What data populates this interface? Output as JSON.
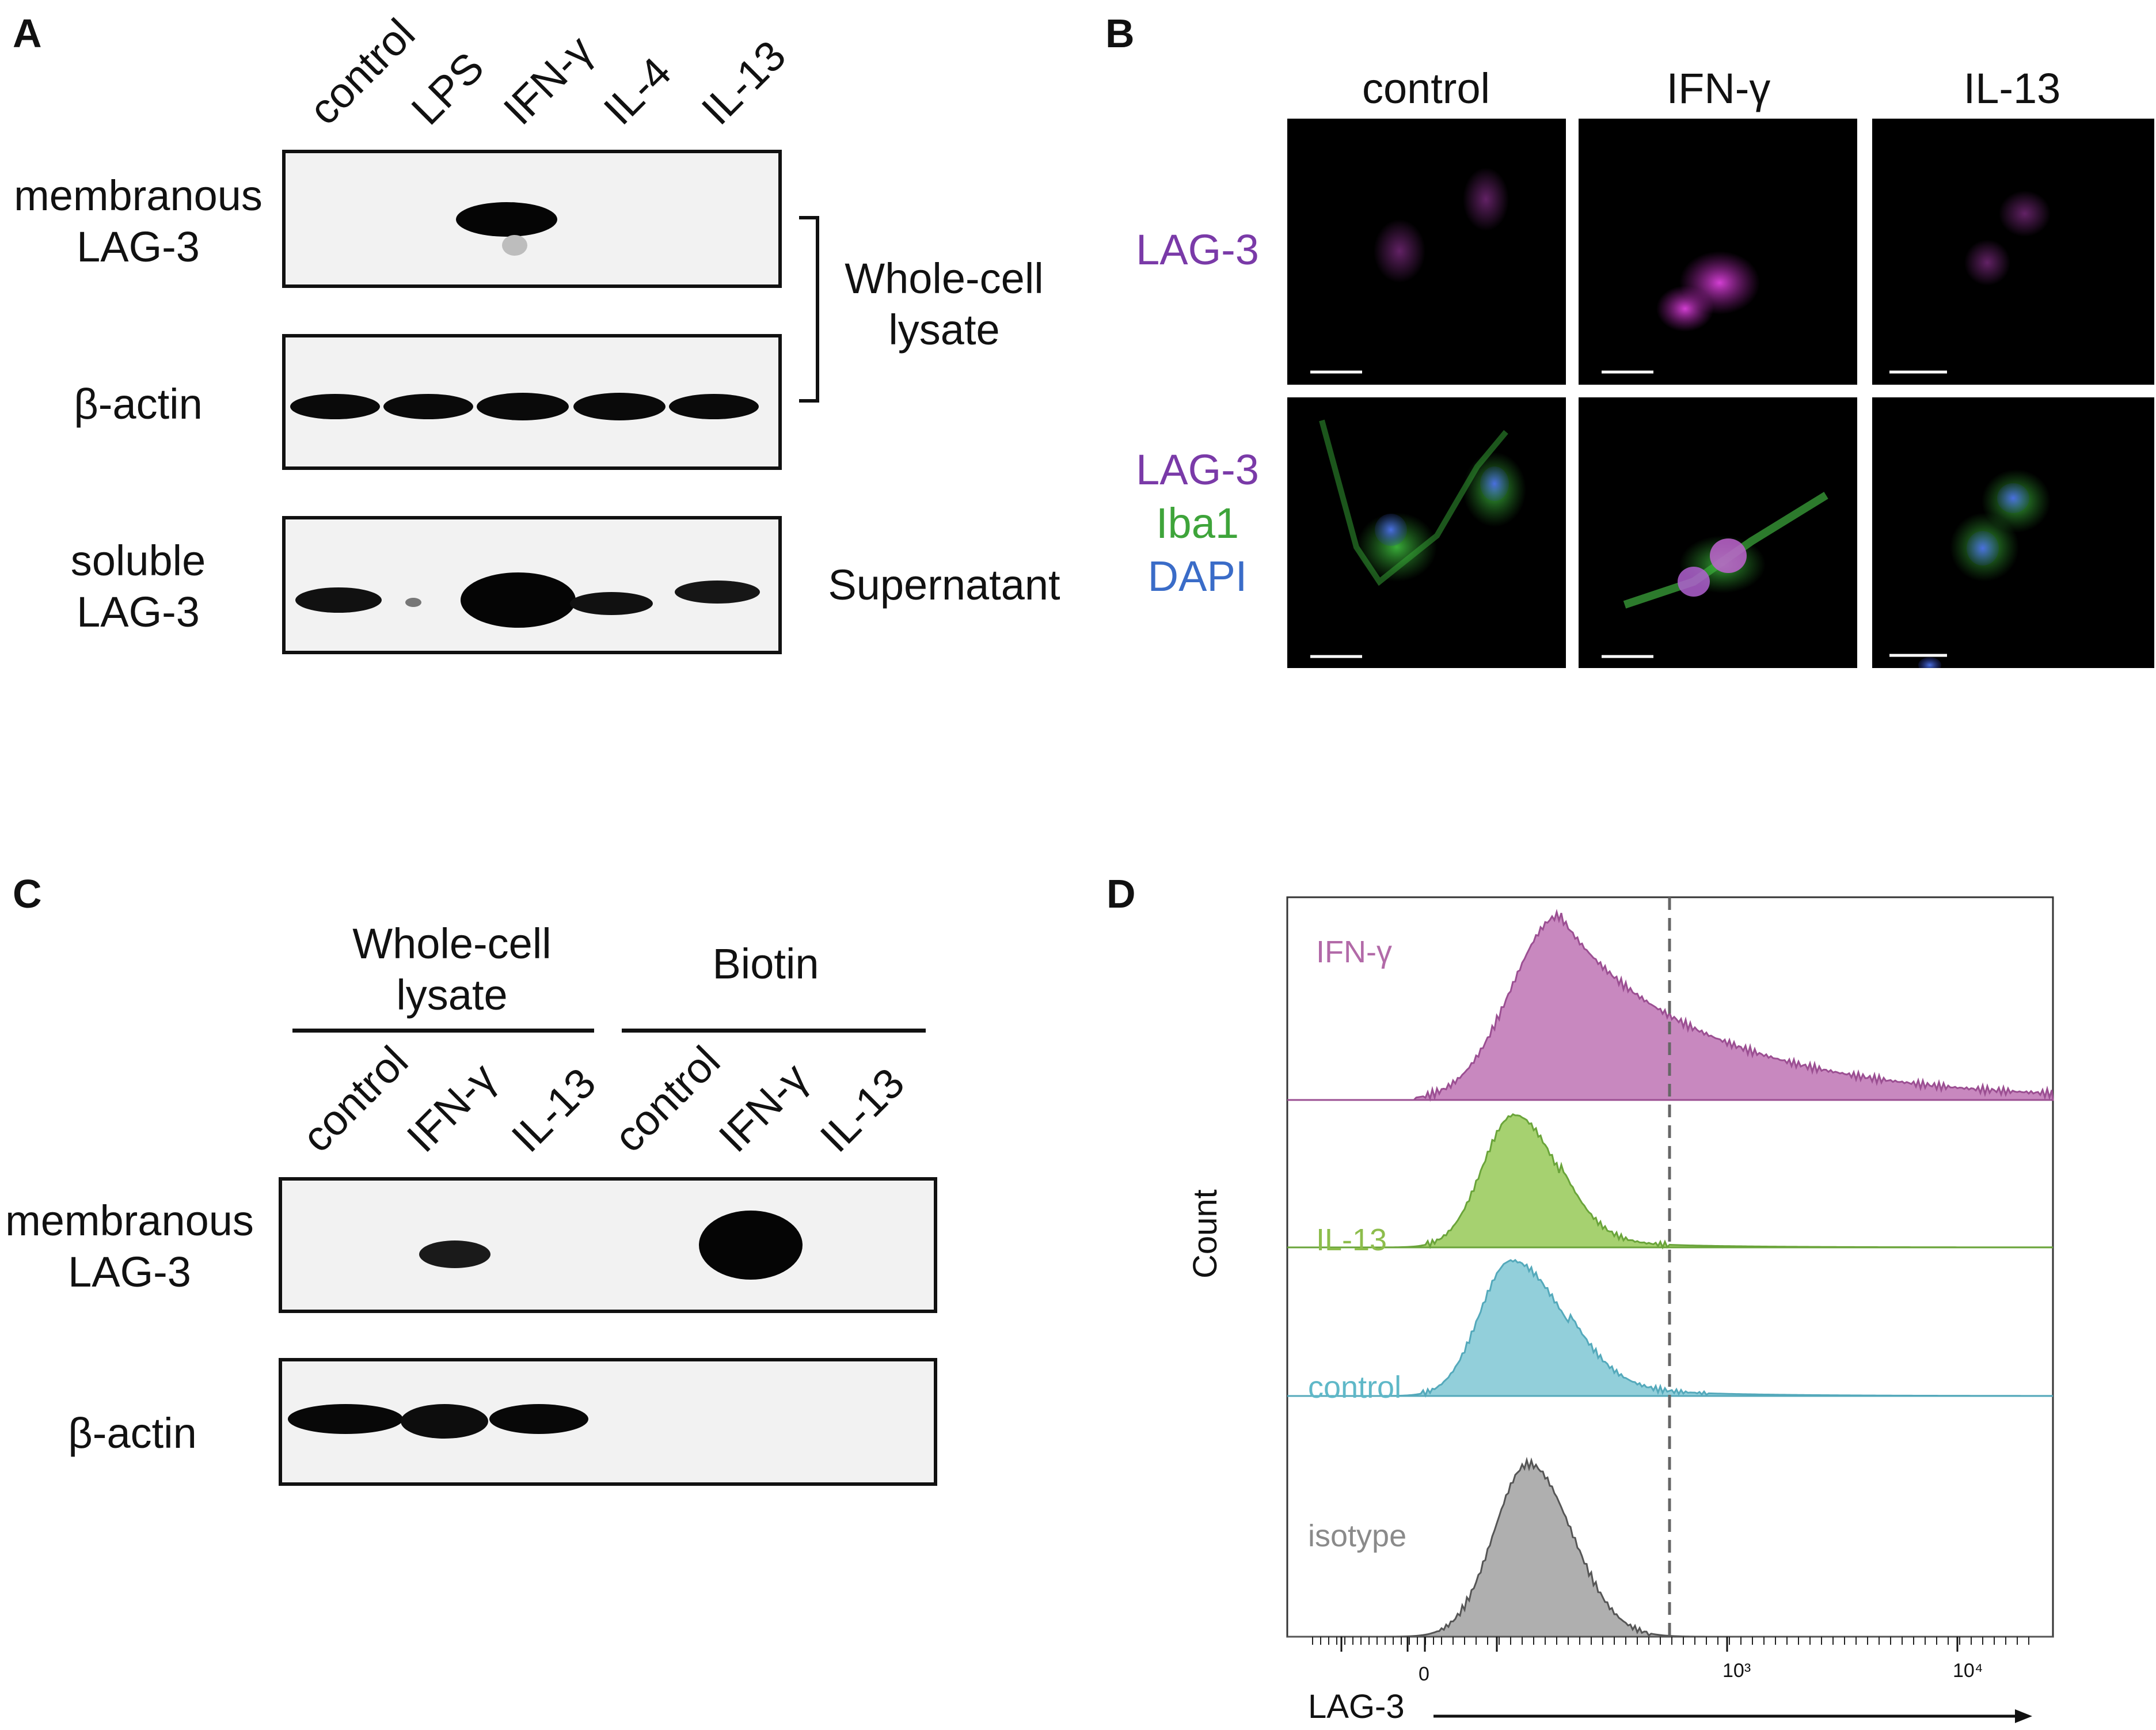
{
  "figure": {
    "panels": [
      "A",
      "B",
      "C",
      "D"
    ]
  },
  "panel_a": {
    "lanes": [
      "control",
      "LPS",
      "IFN-γ",
      "IL-4",
      "IL-13"
    ],
    "rows": [
      {
        "label_line1": "membranous",
        "label_line2": "LAG-3"
      },
      {
        "label_line1": "β-actin",
        "label_line2": ""
      },
      {
        "label_line1": "soluble",
        "label_line2": "LAG-3"
      }
    ],
    "bracket_label_line1": "Whole-cell",
    "bracket_label_line2": "lysate",
    "supernatant_label": "Supernatant"
  },
  "panel_b": {
    "columns": [
      "control",
      "IFN-γ",
      "IL-13"
    ],
    "row1_label": "LAG-3",
    "row2_labels": [
      "LAG-3",
      "Iba1",
      "DAPI"
    ],
    "colors": {
      "lag3": "#7a3aa8",
      "iba1": "#3ea43a",
      "dapi": "#3a6cc8"
    }
  },
  "panel_c": {
    "group1_line1": "Whole-cell",
    "group1_line2": "lysate",
    "group2": "Biotin",
    "lanes": [
      "control",
      "IFN-γ",
      "IL-13",
      "control",
      "IFN-γ",
      "IL-13"
    ],
    "rows": [
      {
        "label_line1": "membranous",
        "label_line2": "LAG-3"
      },
      {
        "label_line1": "β-actin",
        "label_line2": ""
      }
    ]
  },
  "chart_data": {
    "type": "area",
    "subtype": "flow-cytometry stacked histogram",
    "xlabel": "LAG-3",
    "ylabel": "Count",
    "x_ticks": [
      "0",
      "10³",
      "10⁴"
    ],
    "x_scale": "biexponential",
    "gate_line": "dashed vertical line at ~600 (LAG-3 intensity)",
    "series": [
      {
        "name": "IFN-γ",
        "color": "#c27bb8",
        "peak_x": 180,
        "shape": "broad, long right tail"
      },
      {
        "name": "IL-13",
        "color": "#9ccc60",
        "peak_x": 110,
        "shape": "narrow"
      },
      {
        "name": "control",
        "color": "#86cad6",
        "peak_x": 110,
        "shape": "narrow, slight right shoulder"
      },
      {
        "name": "isotype",
        "color": "#a6a6a6",
        "peak_x": 130,
        "shape": "narrow"
      }
    ]
  }
}
